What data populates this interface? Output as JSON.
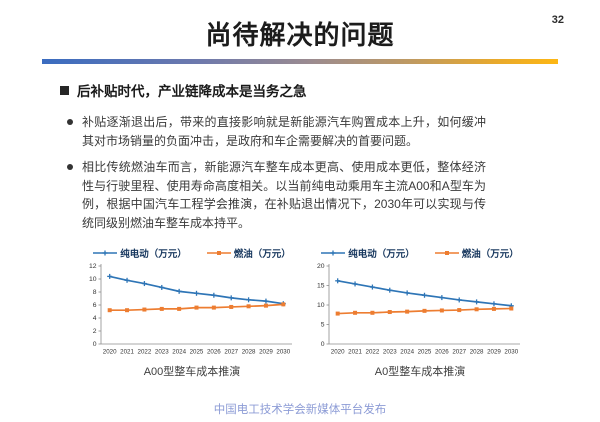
{
  "slide": {
    "page_number": "32",
    "title": "尚待解决的问题",
    "heading": "后补贴时代，产业链降成本是当务之急",
    "bullets": [
      "补贴逐渐退出后，带来的直接影响就是新能源汽车购置成本上升，如何缓冲其对市场销量的负面冲击，是政府和车企需要解决的首要问题。",
      "相比传统燃油车而言，新能源汽车整车成本更高、使用成本更低，整体经济性与行驶里程、使用寿命高度相关。以当前纯电动乘用车主流A00和A型车为例，根据中国汽车工程学会推演，在补贴退出情况下，2030年可以实现与传统同级别燃油车整车成本持平。"
    ],
    "footer": "中国电工技术学会新媒体平台发布"
  },
  "colors": {
    "ev_line": "#2E75B6",
    "fuel_line": "#ED7D31",
    "axis": "#8c8c8c",
    "tick_label": "#333333",
    "legend_text": "#17375E",
    "gradient_start": "#3A6CC0",
    "gradient_end": "#FDB714",
    "footer_text": "#8D9CD6"
  },
  "chart_data": [
    {
      "type": "line",
      "title": "A00型整车成本推演",
      "categories": [
        "2020",
        "2021",
        "2022",
        "2023",
        "2024",
        "2025",
        "2026",
        "2027",
        "2028",
        "2029",
        "2030"
      ],
      "series": [
        {
          "name": "纯电动（万元）",
          "color": "#2E75B6",
          "marker": "plus",
          "values": [
            10.4,
            9.8,
            9.3,
            8.7,
            8.1,
            7.8,
            7.5,
            7.1,
            6.8,
            6.6,
            6.2
          ]
        },
        {
          "name": "燃油（万元）",
          "color": "#ED7D31",
          "marker": "square",
          "values": [
            5.2,
            5.2,
            5.3,
            5.4,
            5.4,
            5.6,
            5.6,
            5.7,
            5.8,
            5.9,
            6.1
          ]
        }
      ],
      "xlabel": "",
      "ylabel": "",
      "ylim": [
        0,
        12
      ],
      "yticks": [
        0,
        2,
        4,
        6,
        8,
        10,
        12
      ],
      "grid": false,
      "legend_position": "top"
    },
    {
      "type": "line",
      "title": "A0型整车成本推演",
      "categories": [
        "2020",
        "2021",
        "2022",
        "2023",
        "2024",
        "2025",
        "2026",
        "2027",
        "2028",
        "2029",
        "2030"
      ],
      "series": [
        {
          "name": "纯电动（万元）",
          "color": "#2E75B6",
          "marker": "plus",
          "values": [
            16.2,
            15.4,
            14.6,
            13.8,
            13.1,
            12.5,
            11.9,
            11.3,
            10.8,
            10.3,
            9.8
          ]
        },
        {
          "name": "燃油（万元）",
          "color": "#ED7D31",
          "marker": "square",
          "values": [
            7.8,
            8.0,
            8.0,
            8.2,
            8.3,
            8.5,
            8.6,
            8.7,
            8.9,
            9.0,
            9.1
          ]
        }
      ],
      "xlabel": "",
      "ylabel": "",
      "ylim": [
        0,
        20
      ],
      "yticks": [
        0,
        5,
        10,
        15,
        20
      ],
      "grid": false,
      "legend_position": "top"
    }
  ]
}
